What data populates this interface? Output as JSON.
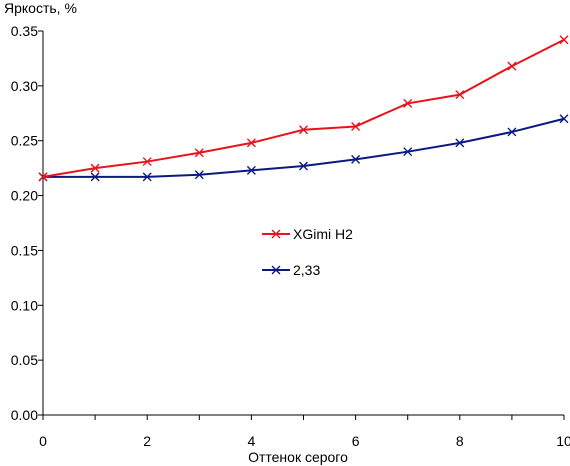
{
  "chart_data": {
    "type": "line",
    "title": "",
    "xlabel": "Оттенок серого",
    "ylabel": "Яркость, %",
    "xlim": [
      0,
      10
    ],
    "ylim": [
      0,
      0.35
    ],
    "x_ticks": [
      "0",
      "2",
      "4",
      "6",
      "8",
      "10"
    ],
    "y_ticks": [
      "0.00",
      "0.05",
      "0.10",
      "0.15",
      "0.20",
      "0.25",
      "0.30",
      "0.35"
    ],
    "grid": false,
    "legend_position": "center",
    "x": [
      0,
      1,
      2,
      3,
      4,
      5,
      6,
      7,
      8,
      9,
      10
    ],
    "series": [
      {
        "name": "XGimi H2",
        "color": "#e8141c",
        "marker": "x",
        "values": [
          0.217,
          0.225,
          0.231,
          0.239,
          0.248,
          0.26,
          0.263,
          0.284,
          0.292,
          0.318,
          0.342
        ]
      },
      {
        "name": "2,33",
        "color": "#0a1a80",
        "marker": "x",
        "values": [
          0.217,
          0.217,
          0.217,
          0.219,
          0.223,
          0.227,
          0.233,
          0.24,
          0.248,
          0.258,
          0.27
        ]
      }
    ]
  }
}
